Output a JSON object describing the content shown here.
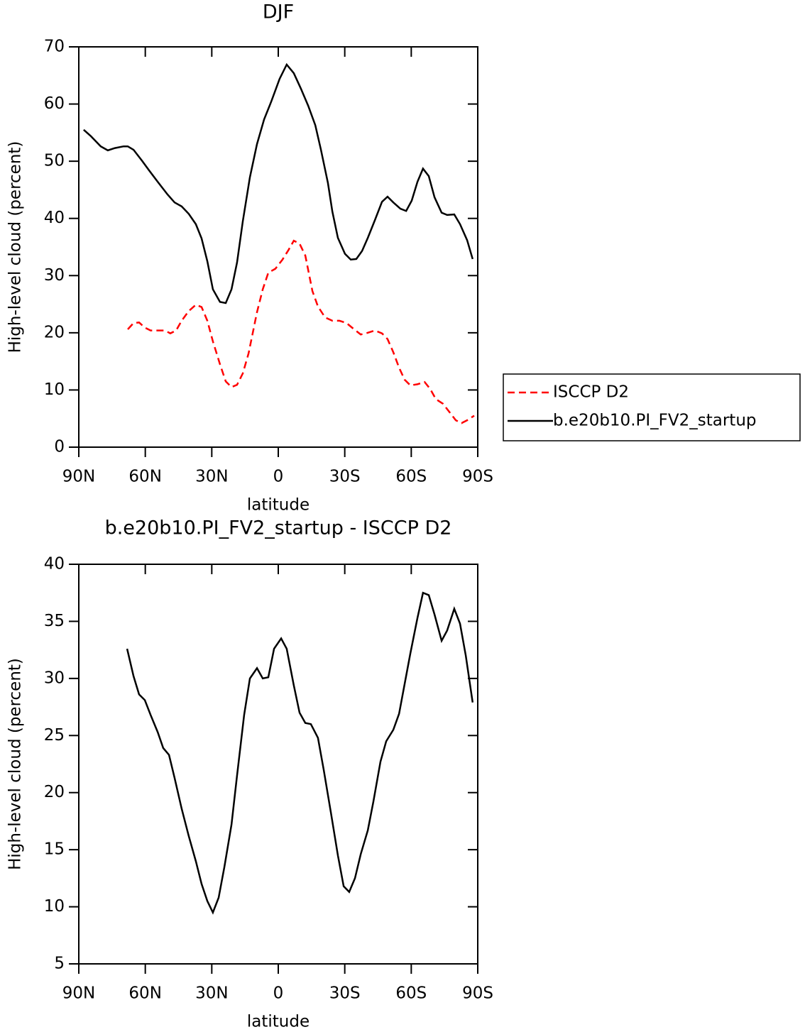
{
  "chart_data": [
    {
      "type": "line",
      "title": "DJF",
      "xlabel": "latitude",
      "ylabel": "High-level cloud (percent)",
      "xlim": [
        90,
        -90
      ],
      "xticks": [
        {
          "value": 90,
          "label": "90N"
        },
        {
          "value": 60,
          "label": "60N"
        },
        {
          "value": 30,
          "label": "30N"
        },
        0,
        {
          "value": -30,
          "label": "30S"
        },
        {
          "value": -60,
          "label": "60S"
        },
        {
          "value": -90,
          "label": "90S"
        }
      ],
      "ylim": [
        0,
        70
      ],
      "yticks": [
        0,
        10,
        20,
        30,
        40,
        50,
        60,
        70
      ],
      "legend": "right",
      "series": [
        {
          "name": "ISCCP D2",
          "color": "#ff0000",
          "line_style": "dashed",
          "x": [
            67.9,
            65.3,
            62.8,
            60.2,
            57.6,
            54.4,
            51.2,
            48.7,
            46.1,
            43.6,
            40.4,
            37.2,
            34.6,
            32.0,
            29.5,
            26.3,
            23.7,
            21.1,
            18.6,
            16.0,
            13.4,
            9.6,
            7.0,
            4.5,
            1.3,
            -1.9,
            -4.5,
            -7.0,
            -9.6,
            -12.2,
            -15.4,
            -17.9,
            -21.1,
            -24.4,
            -27.6,
            -30.8,
            -33.3,
            -37.2,
            -40.4,
            -43.6,
            -46.8,
            -49.3,
            -51.9,
            -54.5,
            -57.0,
            -59.6,
            -62.8,
            -66.0,
            -68.5,
            -71.1,
            -74.3,
            -77.5,
            -80.1,
            -82.7,
            -85.2,
            -88.4
          ],
          "values": [
            20.6,
            21.7,
            21.8,
            20.9,
            20.4,
            20.4,
            20.4,
            19.9,
            20.4,
            22.1,
            23.8,
            24.9,
            24.5,
            22.1,
            18.5,
            14.5,
            11.5,
            10.5,
            10.9,
            12.9,
            16.4,
            23.6,
            27.6,
            30.5,
            31.2,
            32.8,
            34.4,
            36.1,
            35.6,
            33.5,
            27.3,
            24.6,
            22.7,
            22.1,
            22.1,
            21.7,
            20.9,
            19.7,
            20.0,
            20.4,
            19.9,
            18.9,
            16.6,
            13.9,
            11.8,
            10.8,
            11.0,
            11.4,
            10.2,
            8.4,
            7.6,
            6.0,
            4.7,
            4.2,
            4.7,
            5.5
          ]
        },
        {
          "name": "b.e20b10.PI_FV2_startup",
          "color": "#000000",
          "line_style": "solid",
          "x": [
            87.8,
            84.6,
            80.1,
            76.9,
            73.7,
            69.8,
            67.9,
            65.3,
            61.5,
            58.3,
            54.4,
            50.0,
            46.8,
            43.6,
            40.4,
            37.2,
            34.6,
            32.0,
            29.5,
            26.3,
            23.7,
            21.1,
            18.6,
            16.0,
            12.8,
            9.6,
            6.4,
            3.2,
            -0.6,
            -3.8,
            -7.0,
            -10.2,
            -13.5,
            -16.7,
            -19.2,
            -22.4,
            -24.4,
            -26.9,
            -30.1,
            -32.7,
            -35.2,
            -37.8,
            -40.4,
            -43.6,
            -46.8,
            -49.3,
            -51.9,
            -55.1,
            -57.7,
            -60.2,
            -62.8,
            -65.3,
            -67.9,
            -70.5,
            -73.7,
            -76.2,
            -79.4,
            -82.0,
            -85.2,
            -87.7
          ],
          "values": [
            55.5,
            54.4,
            52.6,
            51.9,
            52.3,
            52.6,
            52.6,
            52.0,
            50.1,
            48.4,
            46.4,
            44.2,
            42.8,
            42.1,
            40.8,
            39.0,
            36.5,
            32.5,
            27.6,
            25.4,
            25.2,
            27.6,
            32.3,
            39.5,
            47.2,
            53.0,
            57.3,
            60.4,
            64.4,
            66.9,
            65.4,
            62.7,
            59.7,
            56.3,
            52.1,
            46.2,
            41.2,
            36.6,
            33.8,
            32.8,
            32.9,
            34.3,
            36.6,
            39.7,
            42.9,
            43.8,
            42.8,
            41.7,
            41.3,
            43.1,
            46.4,
            48.7,
            47.4,
            43.7,
            41.0,
            40.6,
            40.7,
            39.0,
            36.2,
            32.9
          ]
        }
      ]
    },
    {
      "type": "line",
      "title": "b.e20b10.PI_FV2_startup - ISCCP D2",
      "xlabel": "latitude",
      "ylabel": "High-level cloud (percent)",
      "xlim": [
        90,
        -90
      ],
      "xticks": [
        {
          "value": 90,
          "label": "90N"
        },
        {
          "value": 60,
          "label": "60N"
        },
        {
          "value": 30,
          "label": "30N"
        },
        0,
        {
          "value": -30,
          "label": "30S"
        },
        {
          "value": -60,
          "label": "60S"
        },
        {
          "value": -90,
          "label": "90S"
        }
      ],
      "ylim": [
        5,
        40
      ],
      "yticks": [
        5,
        10,
        15,
        20,
        25,
        30,
        35,
        40
      ],
      "series": [
        {
          "color": "#000000",
          "line_style": "solid",
          "x": [
            68.2,
            65.3,
            62.8,
            60.2,
            57.6,
            54.4,
            51.9,
            49.3,
            46.8,
            43.6,
            40.4,
            37.2,
            34.6,
            32.0,
            29.5,
            26.9,
            24.3,
            21.1,
            18.6,
            15.4,
            12.8,
            9.6,
            7.0,
            4.5,
            1.9,
            -1.3,
            -3.8,
            -7.0,
            -9.6,
            -12.2,
            -14.7,
            -17.9,
            -20.5,
            -23.7,
            -26.9,
            -29.5,
            -32.0,
            -34.6,
            -37.2,
            -40.4,
            -42.9,
            -46.1,
            -48.7,
            -51.9,
            -54.5,
            -57.0,
            -59.6,
            -62.8,
            -65.3,
            -67.9,
            -70.5,
            -73.7,
            -76.2,
            -79.4,
            -82.0,
            -84.6,
            -87.7
          ],
          "values": [
            32.6,
            30.2,
            28.6,
            28.1,
            26.8,
            25.3,
            23.9,
            23.3,
            21.3,
            18.6,
            16.2,
            14.0,
            12.0,
            10.5,
            9.5,
            10.8,
            13.5,
            17.2,
            21.5,
            26.8,
            30.0,
            30.9,
            30.0,
            30.1,
            32.6,
            33.5,
            32.6,
            29.4,
            27.0,
            26.1,
            26.0,
            24.8,
            22.0,
            18.3,
            14.5,
            11.8,
            11.3,
            12.5,
            14.6,
            16.7,
            19.2,
            22.7,
            24.5,
            25.5,
            26.9,
            29.5,
            32.2,
            35.3,
            37.5,
            37.3,
            35.6,
            33.3,
            34.2,
            36.1,
            34.8,
            32.0,
            27.9
          ]
        }
      ]
    }
  ]
}
